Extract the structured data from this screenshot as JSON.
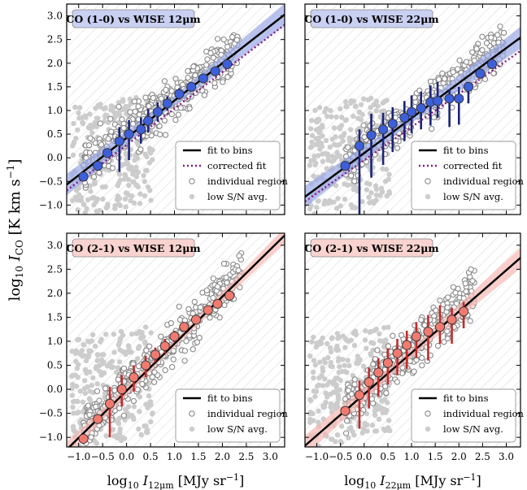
{
  "figure": {
    "ylabel_main": "log",
    "ylabel_sub": "10",
    "ylabel_var": " I",
    "ylabel_var_sub": "CO",
    "ylabel_units": " [K km s",
    "ylabel_exp": "−1",
    "ylabel_close": "]"
  },
  "colors": {
    "co10_points": "#3d5fd9",
    "co10_bars": "#1c237a",
    "co10_band": "#9aa8e6",
    "co10_title_bg": "#c9d0f2",
    "co21_points": "#f07a70",
    "co21_bars": "#c42a2a",
    "co21_band": "#f6b9b3",
    "co21_title_bg": "#f9d3cf",
    "fit_line": "#000000",
    "corrected_fit": "#8b1a8b",
    "individual": "#888888",
    "low_sn": "#cccccc",
    "hatch": "#d6d6d6"
  },
  "chart_data": [
    {
      "type": "scatter",
      "panel_title": "CO (1-0) vs WISE 12μm",
      "xlabel": "",
      "xlim": [
        -1.25,
        3.3
      ],
      "ylim": [
        -1.2,
        3.25
      ],
      "xticks": [
        -1.0,
        -0.5,
        0.0,
        0.5,
        1.0,
        1.5,
        2.0,
        2.5,
        3.0
      ],
      "yticks": [
        -1.0,
        -0.5,
        0.0,
        0.5,
        1.0,
        1.5,
        2.0,
        2.5,
        3.0
      ],
      "show_xtick_labels": false,
      "show_ytick_labels": true,
      "fit": {
        "slope": 0.79,
        "intercept": 0.42
      },
      "corrected_fit": {
        "slope": 0.77,
        "intercept": 0.27
      },
      "band_halfwidth": 0.13,
      "binned_points": {
        "x": [
          -0.9,
          -0.6,
          -0.4,
          -0.15,
          0.05,
          0.3,
          0.45,
          0.65,
          0.85,
          1.1,
          1.35,
          1.6,
          1.85,
          2.1
        ],
        "y": [
          -0.4,
          -0.17,
          0.1,
          0.35,
          0.5,
          0.6,
          0.78,
          0.97,
          1.15,
          1.35,
          1.5,
          1.68,
          1.83,
          1.98
        ],
        "err_lo": [
          0.0,
          0.0,
          0.0,
          0.65,
          0.55,
          0.3,
          0.25,
          0.2,
          0.15,
          0.12,
          0.1,
          0.1,
          0.1,
          0.05
        ],
        "err_hi": [
          0.0,
          0.0,
          0.0,
          0.3,
          0.3,
          0.25,
          0.25,
          0.2,
          0.15,
          0.12,
          0.1,
          0.1,
          0.1,
          0.05
        ]
      },
      "legend": [
        "fit to bins",
        "corrected fit",
        "individual region",
        "low S/N avg."
      ],
      "legend_position": "lower-right",
      "color_key": "co10"
    },
    {
      "type": "scatter",
      "panel_title": "CO (1-0) vs WISE 22μm",
      "xlabel": "",
      "xlim": [
        -1.25,
        3.3
      ],
      "ylim": [
        -1.2,
        3.25
      ],
      "xticks": [
        -1.0,
        -0.5,
        0.0,
        0.5,
        1.0,
        1.5,
        2.0,
        2.5,
        3.0
      ],
      "yticks": [
        -1.0,
        -0.5,
        0.0,
        0.5,
        1.0,
        1.5,
        2.0,
        2.5,
        3.0
      ],
      "show_xtick_labels": false,
      "show_ytick_labels": false,
      "fit": {
        "slope": 0.74,
        "intercept": 0.1
      },
      "corrected_fit": {
        "slope": 0.7,
        "intercept": -0.05
      },
      "band_halfwidth": 0.13,
      "binned_points": {
        "x": [
          -0.4,
          -0.1,
          0.15,
          0.4,
          0.6,
          0.85,
          1.0,
          1.2,
          1.4,
          1.55,
          1.8,
          2.0,
          2.2,
          2.45,
          2.7
        ],
        "y": [
          -0.17,
          0.25,
          0.48,
          0.6,
          0.72,
          0.85,
          0.97,
          1.05,
          1.18,
          1.2,
          1.25,
          1.25,
          1.5,
          1.78,
          1.98
        ],
        "err_lo": [
          0.0,
          1.45,
          0.9,
          0.75,
          0.6,
          0.5,
          0.45,
          0.45,
          0.5,
          0.35,
          0.6,
          0.55,
          0.35,
          0.1,
          0.05
        ],
        "err_hi": [
          0.0,
          0.35,
          0.45,
          0.35,
          0.35,
          0.35,
          0.35,
          0.35,
          0.35,
          0.4,
          0.2,
          0.25,
          0.1,
          0.1,
          0.05
        ]
      },
      "legend": [
        "fit to bins",
        "corrected fit",
        "individual region",
        "low S/N avg."
      ],
      "legend_position": "lower-right",
      "color_key": "co10"
    },
    {
      "type": "scatter",
      "panel_title": "CO (2-1) vs WISE 12μm",
      "xlabel": "log10 I12μm [MJy sr−1]",
      "xlim": [
        -1.25,
        3.3
      ],
      "ylim": [
        -1.2,
        3.25
      ],
      "xticks": [
        -1.0,
        -0.5,
        0.0,
        0.5,
        1.0,
        1.5,
        2.0,
        2.5,
        3.0
      ],
      "yticks": [
        -1.0,
        -0.5,
        0.0,
        0.5,
        1.0,
        1.5,
        2.0,
        2.5,
        3.0
      ],
      "show_xtick_labels": true,
      "show_ytick_labels": true,
      "fit": {
        "slope": 0.98,
        "intercept": -0.03
      },
      "band_halfwidth": 0.09,
      "binned_points": {
        "x": [
          -0.9,
          -0.6,
          -0.35,
          -0.1,
          0.15,
          0.4,
          0.6,
          0.8,
          1.0,
          1.2,
          1.45,
          1.7,
          1.9,
          2.15
        ],
        "y": [
          -1.03,
          -0.62,
          -0.3,
          0.0,
          0.25,
          0.5,
          0.72,
          0.9,
          1.1,
          1.3,
          1.45,
          1.65,
          1.78,
          1.95
        ],
        "err_lo": [
          0.0,
          0.0,
          0.7,
          0.35,
          0.3,
          0.25,
          0.15,
          0.15,
          0.12,
          0.1,
          0.05,
          0.05,
          0.05,
          0.05
        ],
        "err_hi": [
          0.0,
          0.0,
          0.35,
          0.3,
          0.25,
          0.2,
          0.15,
          0.15,
          0.12,
          0.1,
          0.05,
          0.05,
          0.05,
          0.05
        ]
      },
      "legend": [
        "fit to bins",
        "individual region",
        "low S/N avg."
      ],
      "legend_position": "lower-right",
      "color_key": "co21"
    },
    {
      "type": "scatter",
      "panel_title": "CO (2-1) vs WISE 22μm",
      "xlabel": "log10 I22μm [MJy sr−1]",
      "xlim": [
        -1.25,
        3.3
      ],
      "ylim": [
        -1.2,
        3.25
      ],
      "xticks": [
        -1.0,
        -0.5,
        0.0,
        0.5,
        1.0,
        1.5,
        2.0,
        2.5,
        3.0
      ],
      "yticks": [
        -1.0,
        -0.5,
        0.0,
        0.5,
        1.0,
        1.5,
        2.0,
        2.5,
        3.0
      ],
      "show_xtick_labels": true,
      "show_ytick_labels": false,
      "fit": {
        "slope": 0.86,
        "intercept": -0.1
      },
      "band_halfwidth": 0.12,
      "binned_points": {
        "x": [
          -0.4,
          -0.1,
          0.1,
          0.3,
          0.5,
          0.7,
          0.9,
          1.1,
          1.35,
          1.6,
          1.85,
          2.1
        ],
        "y": [
          -0.45,
          -0.12,
          0.15,
          0.35,
          0.55,
          0.75,
          0.92,
          1.1,
          1.2,
          1.3,
          1.45,
          1.62
        ],
        "err_lo": [
          0.0,
          0.7,
          0.55,
          0.5,
          0.45,
          0.45,
          0.5,
          0.45,
          0.6,
          0.35,
          0.5,
          0.35
        ],
        "err_hi": [
          0.0,
          0.3,
          0.3,
          0.3,
          0.3,
          0.3,
          0.3,
          0.3,
          0.35,
          0.45,
          0.25,
          0.2
        ]
      },
      "legend": [
        "fit to bins",
        "individual region",
        "low S/N avg."
      ],
      "legend_position": "lower-right",
      "color_key": "co21"
    }
  ]
}
